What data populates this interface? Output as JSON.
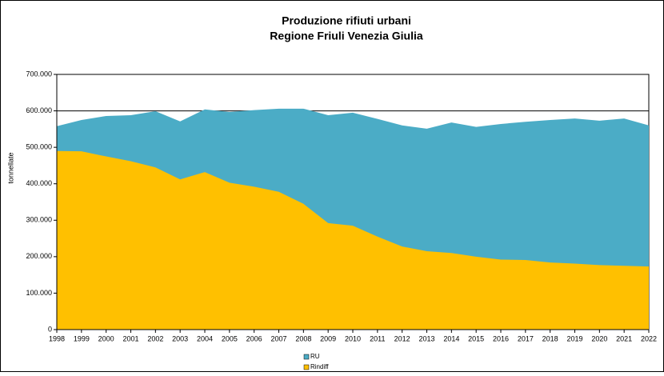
{
  "chart_data": {
    "type": "area",
    "title": "Produzione rifiuti urbani",
    "subtitle": "Regione Friuli Venezia Giulia",
    "y_label": "tonnellate",
    "categories": [
      "1998",
      "1999",
      "2000",
      "2001",
      "2002",
      "2003",
      "2004",
      "2005",
      "2006",
      "2007",
      "2008",
      "2009",
      "2010",
      "2011",
      "2012",
      "2013",
      "2014",
      "2015",
      "2016",
      "2017",
      "2018",
      "2019",
      "2020",
      "2021",
      "2022"
    ],
    "series": [
      {
        "name": "RU",
        "color": "#4bacc6",
        "values": [
          558000,
          575000,
          586000,
          588000,
          599000,
          571000,
          604000,
          597000,
          602000,
          606000,
          606000,
          588000,
          595000,
          578000,
          560000,
          551000,
          568000,
          556000,
          564000,
          570000,
          575000,
          579000,
          573000,
          579000,
          560000
        ]
      },
      {
        "name": "Rindiff",
        "color": "#ffc000",
        "values": [
          490000,
          489000,
          475000,
          462000,
          445000,
          412000,
          432000,
          403000,
          392000,
          378000,
          345000,
          292000,
          285000,
          255000,
          228000,
          215000,
          210000,
          200000,
          192000,
          191000,
          184000,
          181000,
          177000,
          175000,
          173000
        ]
      }
    ],
    "ylim": [
      0,
      700000
    ],
    "yticks": [
      0,
      {
        "value": 100000,
        "label": "100.000"
      },
      {
        "value": 200000,
        "label": "200.000"
      },
      {
        "value": 300000,
        "label": "300.000"
      },
      {
        "value": 400000,
        "label": "400.000"
      },
      {
        "value": 500000,
        "label": "500.000"
      },
      {
        "value": 600000,
        "label": "600.000"
      },
      {
        "value": 700000,
        "label": "700.000"
      }
    ],
    "grid": true,
    "legend": "bottom"
  }
}
